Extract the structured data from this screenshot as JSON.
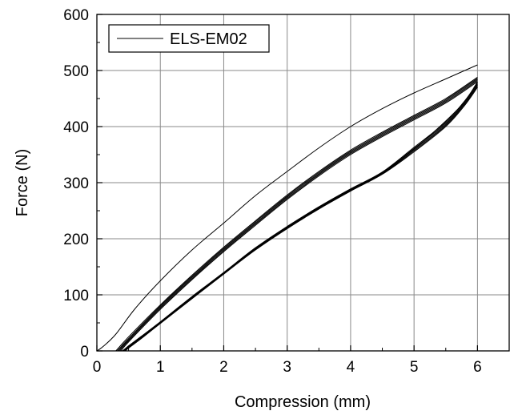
{
  "chart_data": {
    "type": "line",
    "xlabel": "Compression (mm)",
    "ylabel": "Force (N)",
    "xlim": [
      0,
      6.5
    ],
    "ylim": [
      0,
      600
    ],
    "x_ticks": [
      0,
      1,
      2,
      3,
      4,
      5,
      6
    ],
    "y_ticks": [
      0,
      100,
      200,
      300,
      400,
      500,
      600
    ],
    "grid": true,
    "legend": {
      "position": "top-left",
      "entries": [
        "ELS-EM02"
      ]
    },
    "series": [
      {
        "name": "ELS-EM02",
        "cycles": [
          {
            "loading": [
              [
                0.0,
                0
              ],
              [
                0.1,
                8
              ],
              [
                0.3,
                30
              ],
              [
                0.6,
                75
              ],
              [
                1.0,
                125
              ],
              [
                1.5,
                180
              ],
              [
                2.0,
                228
              ],
              [
                2.5,
                277
              ],
              [
                3.0,
                320
              ],
              [
                3.5,
                362
              ],
              [
                4.0,
                400
              ],
              [
                4.5,
                432
              ],
              [
                5.0,
                460
              ],
              [
                5.5,
                485
              ],
              [
                6.0,
                510
              ]
            ],
            "unloading": [
              [
                6.0,
                480
              ],
              [
                5.8,
                445
              ],
              [
                5.5,
                410
              ],
              [
                5.0,
                360
              ],
              [
                4.5,
                318
              ],
              [
                4.0,
                288
              ],
              [
                3.5,
                255
              ],
              [
                3.0,
                220
              ],
              [
                2.5,
                182
              ],
              [
                2.0,
                138
              ],
              [
                1.5,
                95
              ],
              [
                1.0,
                50
              ],
              [
                0.7,
                25
              ],
              [
                0.5,
                8
              ],
              [
                0.4,
                0
              ]
            ]
          },
          {
            "loading": [
              [
                0.3,
                0
              ],
              [
                0.5,
                25
              ],
              [
                1.0,
                82
              ],
              [
                1.5,
                135
              ],
              [
                2.0,
                185
              ],
              [
                2.5,
                232
              ],
              [
                3.0,
                278
              ],
              [
                3.5,
                320
              ],
              [
                4.0,
                358
              ],
              [
                4.5,
                390
              ],
              [
                5.0,
                420
              ],
              [
                5.5,
                450
              ],
              [
                6.0,
                488
              ]
            ],
            "unloading": [
              [
                6.0,
                470
              ],
              [
                5.8,
                438
              ],
              [
                5.5,
                400
              ],
              [
                5.0,
                355
              ],
              [
                4.5,
                315
              ],
              [
                4.0,
                285
              ],
              [
                3.5,
                253
              ],
              [
                3.0,
                218
              ],
              [
                2.5,
                180
              ],
              [
                2.0,
                137
              ],
              [
                1.5,
                93
              ],
              [
                1.0,
                49
              ],
              [
                0.7,
                22
              ],
              [
                0.5,
                5
              ],
              [
                0.45,
                0
              ]
            ]
          },
          {
            "loading": [
              [
                0.32,
                0
              ],
              [
                0.5,
                22
              ],
              [
                1.0,
                80
              ],
              [
                1.5,
                133
              ],
              [
                2.0,
                183
              ],
              [
                2.5,
                230
              ],
              [
                3.0,
                276
              ],
              [
                3.5,
                318
              ],
              [
                4.0,
                356
              ],
              [
                4.5,
                388
              ],
              [
                5.0,
                418
              ],
              [
                5.5,
                448
              ],
              [
                6.0,
                486
              ]
            ],
            "unloading": [
              [
                6.0,
                472
              ],
              [
                5.8,
                440
              ],
              [
                5.5,
                402
              ],
              [
                5.0,
                357
              ],
              [
                4.5,
                316
              ],
              [
                4.0,
                286
              ],
              [
                3.5,
                254
              ],
              [
                3.0,
                219
              ],
              [
                2.5,
                181
              ],
              [
                2.0,
                137
              ],
              [
                1.5,
                94
              ],
              [
                1.0,
                49
              ],
              [
                0.7,
                23
              ],
              [
                0.5,
                6
              ],
              [
                0.44,
                0
              ]
            ]
          },
          {
            "loading": [
              [
                0.34,
                0
              ],
              [
                0.5,
                20
              ],
              [
                1.0,
                78
              ],
              [
                1.5,
                131
              ],
              [
                2.0,
                181
              ],
              [
                2.5,
                228
              ],
              [
                3.0,
                274
              ],
              [
                3.5,
                316
              ],
              [
                4.0,
                354
              ],
              [
                4.5,
                386
              ],
              [
                5.0,
                416
              ],
              [
                5.5,
                446
              ],
              [
                6.0,
                484
              ]
            ],
            "unloading": [
              [
                6.0,
                474
              ],
              [
                5.8,
                442
              ],
              [
                5.5,
                404
              ],
              [
                5.0,
                359
              ],
              [
                4.5,
                317
              ],
              [
                4.0,
                287
              ],
              [
                3.5,
                255
              ],
              [
                3.0,
                220
              ],
              [
                2.5,
                182
              ],
              [
                2.0,
                138
              ],
              [
                1.5,
                95
              ],
              [
                1.0,
                50
              ],
              [
                0.7,
                24
              ],
              [
                0.5,
                7
              ],
              [
                0.43,
                0
              ]
            ]
          },
          {
            "loading": [
              [
                0.36,
                0
              ],
              [
                0.5,
                18
              ],
              [
                1.0,
                76
              ],
              [
                1.5,
                129
              ],
              [
                2.0,
                179
              ],
              [
                2.5,
                226
              ],
              [
                3.0,
                272
              ],
              [
                3.5,
                314
              ],
              [
                4.0,
                352
              ],
              [
                4.5,
                384
              ],
              [
                5.0,
                414
              ],
              [
                5.5,
                444
              ],
              [
                6.0,
                482
              ]
            ],
            "unloading": [
              [
                6.0,
                476
              ],
              [
                5.8,
                444
              ],
              [
                5.5,
                406
              ],
              [
                5.0,
                361
              ],
              [
                4.5,
                318
              ],
              [
                4.0,
                288
              ],
              [
                3.5,
                256
              ],
              [
                3.0,
                221
              ],
              [
                2.5,
                183
              ],
              [
                2.0,
                139
              ],
              [
                1.5,
                96
              ],
              [
                1.0,
                51
              ],
              [
                0.7,
                25
              ],
              [
                0.5,
                8
              ],
              [
                0.42,
                0
              ]
            ]
          },
          {
            "loading": [
              [
                0.38,
                0
              ],
              [
                0.5,
                16
              ],
              [
                1.0,
                74
              ],
              [
                1.5,
                127
              ],
              [
                2.0,
                177
              ],
              [
                2.5,
                224
              ],
              [
                3.0,
                270
              ],
              [
                3.5,
                312
              ],
              [
                4.0,
                350
              ],
              [
                4.5,
                382
              ],
              [
                5.0,
                412
              ],
              [
                5.5,
                442
              ],
              [
                6.0,
                480
              ]
            ],
            "unloading": [
              [
                6.0,
                478
              ],
              [
                5.8,
                446
              ],
              [
                5.5,
                408
              ],
              [
                5.0,
                363
              ],
              [
                4.5,
                319
              ],
              [
                4.0,
                289
              ],
              [
                3.5,
                257
              ],
              [
                3.0,
                222
              ],
              [
                2.5,
                184
              ],
              [
                2.0,
                140
              ],
              [
                1.5,
                97
              ],
              [
                1.0,
                52
              ],
              [
                0.7,
                26
              ],
              [
                0.5,
                9
              ],
              [
                0.41,
                0
              ]
            ]
          }
        ]
      }
    ]
  }
}
